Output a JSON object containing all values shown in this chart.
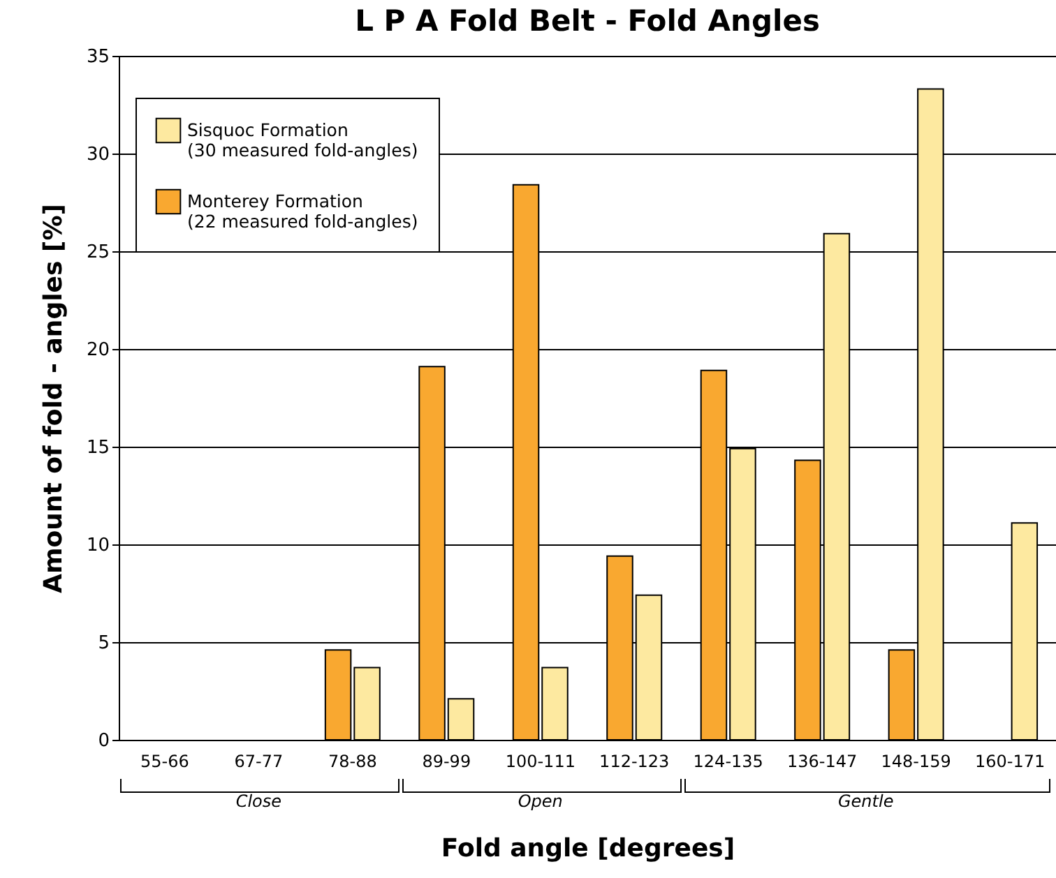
{
  "chart_data": {
    "type": "bar",
    "title": "L P A  Fold Belt  -  Fold Angles",
    "xlabel": "Fold angle [degrees]",
    "ylabel": "Amount  of  fold - angles [%]",
    "categories": [
      "55-66",
      "67-77",
      "78-88",
      "89-99",
      "100-111",
      "112-123",
      "124-135",
      "136-147",
      "148-159",
      "160-171"
    ],
    "series": [
      {
        "name": "Sisquoc Formation (30 measured fold-angles)",
        "color": "#fde9a0",
        "values": [
          null,
          null,
          3.7,
          2.1,
          3.7,
          7.4,
          14.9,
          25.9,
          33.3,
          11.1
        ]
      },
      {
        "name": "Monterey Formation (22 measured fold-angles)",
        "color": "#f9a830",
        "values": [
          null,
          null,
          4.6,
          19.1,
          28.4,
          9.4,
          18.9,
          14.3,
          4.6,
          null
        ]
      }
    ],
    "ylim": [
      0,
      35
    ],
    "yticks": [
      0,
      5,
      10,
      15,
      20,
      25,
      30,
      35
    ],
    "grid": "y",
    "legend": "top left",
    "annotations": [
      "Close",
      "Open",
      "Gentle"
    ]
  }
}
